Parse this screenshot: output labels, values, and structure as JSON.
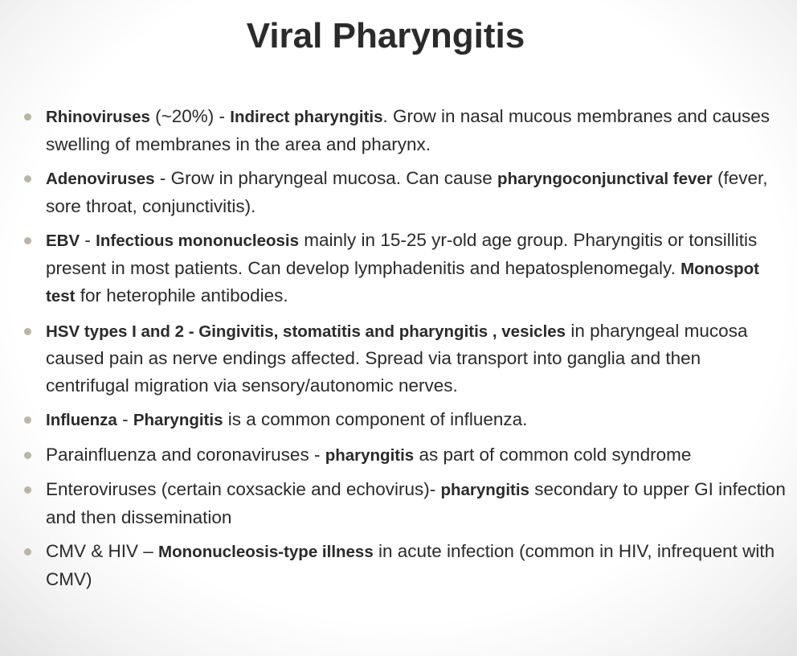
{
  "title": "Viral Pharyngitis",
  "bullets": [
    {
      "segments": [
        {
          "text": "Rhinoviruses",
          "bold": true
        },
        {
          "text": " (~20%) - ",
          "bold": false
        },
        {
          "text": "Indirect pharyngitis",
          "bold": true
        },
        {
          "text": ". Grow in nasal mucous membranes and causes swelling of membranes in the area and pharynx.",
          "bold": false
        }
      ]
    },
    {
      "segments": [
        {
          "text": "Adenoviruses",
          "bold": true
        },
        {
          "text": "  - Grow in pharyngeal mucosa. Can cause  ",
          "bold": false
        },
        {
          "text": "pharyngoconjunctival fever",
          "bold": true
        },
        {
          "text": " (fever, sore throat, conjunctivitis).",
          "bold": false
        }
      ]
    },
    {
      "segments": [
        {
          "text": "EBV",
          "bold": true
        },
        {
          "text": " - ",
          "bold": false
        },
        {
          "text": "Infectious mononucleosis",
          "bold": true
        },
        {
          "text": " mainly in 15-25 yr-old age group.  Pharyngitis or tonsillitis present in most patients.  Can develop lymphadenitis and hepatosplenomegaly.   ",
          "bold": false
        },
        {
          "text": "Monospot test",
          "bold": true
        },
        {
          "text": "  for heterophile antibodies.",
          "bold": false
        }
      ]
    },
    {
      "segments": [
        {
          "text": "HSV types I and 2 - Gingivitis, stomatitis and  pharyngitis  , vesicles",
          "bold": true
        },
        {
          "text": " in pharyngeal mucosa caused pain as nerve endings affected.  Spread via transport into ganglia and then centrifugal migration via sensory/autonomic nerves.",
          "bold": false
        }
      ]
    },
    {
      "segments": [
        {
          "text": "Influenza",
          "bold": true
        },
        {
          "text": " - ",
          "bold": false
        },
        {
          "text": "Pharyngitis",
          "bold": true
        },
        {
          "text": " is a common component of influenza.",
          "bold": false
        }
      ]
    },
    {
      "segments": [
        {
          "text": "Parainfluenza and coronaviruses -  ",
          "bold": false
        },
        {
          "text": "pharyngitis",
          "bold": true
        },
        {
          "text": " as part of common cold syndrome",
          "bold": false
        }
      ]
    },
    {
      "segments": [
        {
          "text": "Enteroviruses (certain coxsackie and echovirus)-  ",
          "bold": false
        },
        {
          "text": "pharyngitis",
          "bold": true
        },
        {
          "text": " secondary to upper GI infection and then dissemination",
          "bold": false
        }
      ]
    },
    {
      "segments": [
        {
          "text": "CMV & HIV – ",
          "bold": false
        },
        {
          "text": "Mononucleosis-type illness",
          "bold": true
        },
        {
          "text": " in acute infection (common in HIV, infrequent with CMV)",
          "bold": false
        }
      ]
    }
  ],
  "colors": {
    "title": "#2b2b2b",
    "text": "#2a2a2a",
    "bullet_dot": "#b9b5a8"
  }
}
